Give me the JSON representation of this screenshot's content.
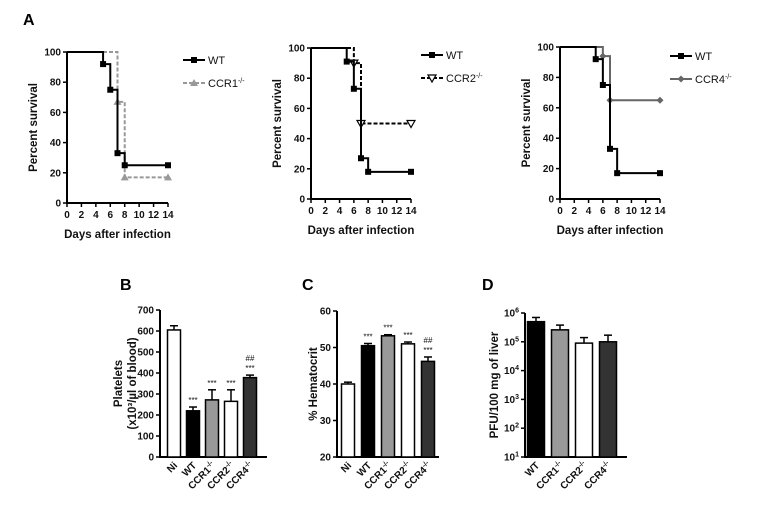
{
  "chart_data": [
    {
      "type": "line",
      "subtype": "kaplan-meier step",
      "panel": "A",
      "xlabel": "Days after infection",
      "ylabel": "Percent survival",
      "xlim": [
        0,
        14
      ],
      "ylim": [
        0,
        100
      ],
      "xticks": [
        0,
        2,
        4,
        6,
        8,
        10,
        12,
        14
      ],
      "yticks": [
        0,
        20,
        40,
        60,
        80,
        100
      ],
      "legend": "top-right",
      "series": [
        {
          "name": "WT",
          "color": "#000000",
          "marker": "square",
          "dash": false,
          "points": [
            [
              5,
              92
            ],
            [
              6,
              75
            ],
            [
              7,
              33
            ],
            [
              8,
              25
            ],
            [
              14,
              25
            ]
          ]
        },
        {
          "name": "CCR1-/-",
          "color": "#999999",
          "marker": "triangle-up",
          "dash": true,
          "points": [
            [
              7,
              67
            ],
            [
              8,
              17
            ],
            [
              14,
              17
            ]
          ]
        }
      ]
    },
    {
      "type": "line",
      "subtype": "kaplan-meier step",
      "xlabel": "Days after infection",
      "ylabel": "Percent survival",
      "xlim": [
        0,
        14
      ],
      "ylim": [
        0,
        100
      ],
      "xticks": [
        0,
        2,
        4,
        6,
        8,
        10,
        12,
        14
      ],
      "yticks": [
        0,
        20,
        40,
        60,
        80,
        100
      ],
      "legend": "top-right",
      "series": [
        {
          "name": "WT",
          "color": "#000000",
          "marker": "square",
          "dash": false,
          "points": [
            [
              5,
              91
            ],
            [
              6,
              73
            ],
            [
              7,
              27
            ],
            [
              8,
              18
            ],
            [
              14,
              18
            ]
          ]
        },
        {
          "name": "CCR2-/-",
          "color": "#000000",
          "marker": "triangle-down-open",
          "dash": true,
          "points": [
            [
              6,
              90
            ],
            [
              7,
              50
            ],
            [
              14,
              50
            ]
          ]
        }
      ]
    },
    {
      "type": "line",
      "subtype": "kaplan-meier step",
      "xlabel": "Days after infection",
      "ylabel": "Percent survival",
      "xlim": [
        0,
        14
      ],
      "ylim": [
        0,
        100
      ],
      "xticks": [
        0,
        2,
        4,
        6,
        8,
        10,
        12,
        14
      ],
      "yticks": [
        0,
        20,
        40,
        60,
        80,
        100
      ],
      "legend": "top-right",
      "series": [
        {
          "name": "WT",
          "color": "#000000",
          "marker": "square",
          "dash": false,
          "points": [
            [
              5,
              92
            ],
            [
              6,
              75
            ],
            [
              7,
              33
            ],
            [
              8,
              17
            ],
            [
              14,
              17
            ]
          ]
        },
        {
          "name": "CCR4-/-",
          "color": "#666666",
          "marker": "diamond",
          "dash": false,
          "points": [
            [
              6,
              94
            ],
            [
              7,
              65
            ],
            [
              14,
              65
            ]
          ]
        }
      ]
    },
    {
      "type": "bar",
      "panel": "B",
      "ylabel": [
        "Platelets",
        "(x10³/µl of blood)"
      ],
      "ylim": [
        0,
        700
      ],
      "yticks": [
        0,
        100,
        200,
        300,
        400,
        500,
        600,
        700
      ],
      "categories": [
        "Ni",
        "WT",
        "CCR1-/-",
        "CCR2-/-",
        "CCR4-/-"
      ],
      "values": [
        605,
        220,
        272,
        265,
        378
      ],
      "errors": [
        20,
        18,
        48,
        55,
        12
      ],
      "colors": [
        "#ffffff",
        "#000000",
        "#999999",
        "#ffffff",
        "#333333"
      ],
      "annotations": [
        [],
        [
          "***"
        ],
        [
          "***"
        ],
        [
          "***"
        ],
        [
          "***",
          "##"
        ]
      ]
    },
    {
      "type": "bar",
      "panel": "C",
      "ylabel": [
        "% Hematocrit"
      ],
      "ylim": [
        20,
        60
      ],
      "yticks": [
        20,
        30,
        40,
        50,
        60
      ],
      "categories": [
        "Ni",
        "WT",
        "CCR1-/-",
        "CCR2-/-",
        "CCR4-/-"
      ],
      "values": [
        40,
        50.5,
        53.2,
        51,
        46.2
      ],
      "errors": [
        0.5,
        0.6,
        0.3,
        0.5,
        1.2
      ],
      "colors": [
        "#ffffff",
        "#000000",
        "#999999",
        "#ffffff",
        "#333333"
      ],
      "annotations": [
        [],
        [
          "***"
        ],
        [
          "***"
        ],
        [
          "***"
        ],
        [
          "***",
          "##"
        ]
      ]
    },
    {
      "type": "bar",
      "panel": "D",
      "yscale": "log",
      "ylabel": [
        "PFU/100 mg of liver"
      ],
      "ylim": [
        10,
        1000000
      ],
      "yticks": [
        "10^1",
        "10^2",
        "10^3",
        "10^4",
        "10^5",
        "10^6"
      ],
      "categories": [
        "WT",
        "CCR1-/-",
        "CCR2-/-",
        "CCR4-/-"
      ],
      "values": [
        500000,
        260000,
        90000,
        100000
      ],
      "error_upper": [
        700000,
        380000,
        140000,
        170000
      ],
      "colors": [
        "#000000",
        "#999999",
        "#ffffff",
        "#333333"
      ],
      "annotations": [
        [],
        [],
        [],
        []
      ]
    }
  ]
}
